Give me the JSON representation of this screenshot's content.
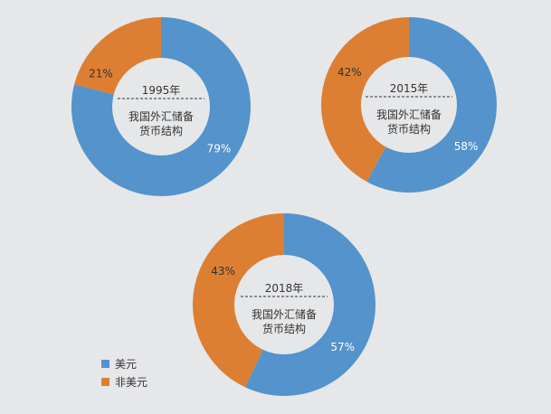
{
  "colors": {
    "background": "#e6e7e9",
    "center_fill": "#e6e7e9",
    "label_light": "#ffffff",
    "label_dark": "#333333"
  },
  "legend": {
    "items": [
      {
        "label": "美元",
        "color": "#5493cb"
      },
      {
        "label": "非美元",
        "color": "#dc7f33"
      }
    ]
  },
  "chart_data": [
    {
      "type": "pie",
      "variant": "donut",
      "center_year": "1995年",
      "center_caption_line1": "我国外汇储备",
      "center_caption_line2": "货币结构",
      "slices": [
        {
          "name": "美元",
          "value": 79,
          "label": "79%",
          "color": "#5493cb"
        },
        {
          "name": "非美元",
          "value": 21,
          "label": "21%",
          "color": "#dc7f33"
        }
      ]
    },
    {
      "type": "pie",
      "variant": "donut",
      "center_year": "2015年",
      "center_caption_line1": "我国外汇储备",
      "center_caption_line2": "货币结构",
      "slices": [
        {
          "name": "美元",
          "value": 58,
          "label": "58%",
          "color": "#5493cb"
        },
        {
          "name": "非美元",
          "value": 42,
          "label": "42%",
          "color": "#dc7f33"
        }
      ]
    },
    {
      "type": "pie",
      "variant": "donut",
      "center_year": "2018年",
      "center_caption_line1": "我国外汇储备",
      "center_caption_line2": "货币结构",
      "slices": [
        {
          "name": "美元",
          "value": 57,
          "label": "57%",
          "color": "#5493cb"
        },
        {
          "name": "非美元",
          "value": 43,
          "label": "43%",
          "color": "#dc7f33"
        }
      ]
    }
  ]
}
